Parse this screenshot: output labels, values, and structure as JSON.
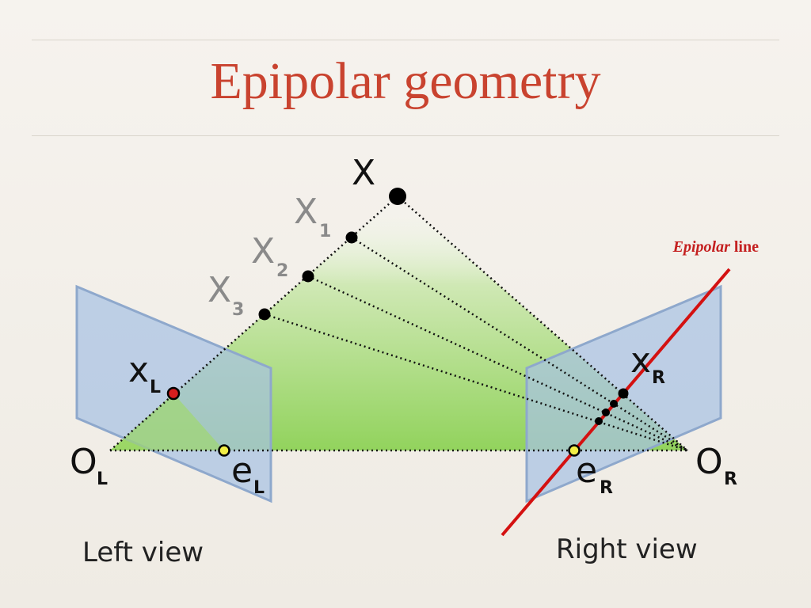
{
  "slide": {
    "title": "Epipolar geometry"
  },
  "labels": {
    "X": "X",
    "X1": "X",
    "X1_sub": "1",
    "X2": "X",
    "X2_sub": "2",
    "X3": "X",
    "X3_sub": "3",
    "xL": "x",
    "xL_sub": "L",
    "xR": "x",
    "xR_sub": "R",
    "OL": "O",
    "OL_sub": "L",
    "OR": "O",
    "OR_sub": "R",
    "eL": "e",
    "eL_sub": "L",
    "eR": "e",
    "eR_sub": "R"
  },
  "epipolar_label": {
    "italic": "Epipolar",
    "rest": " line"
  },
  "captions": {
    "left": "Left view",
    "right": "Right view"
  },
  "colors": {
    "title": "#c9432f",
    "epipolar_line": "#d41111",
    "image_plane": "#a8c2e3",
    "triangle": "#9fd86a"
  }
}
